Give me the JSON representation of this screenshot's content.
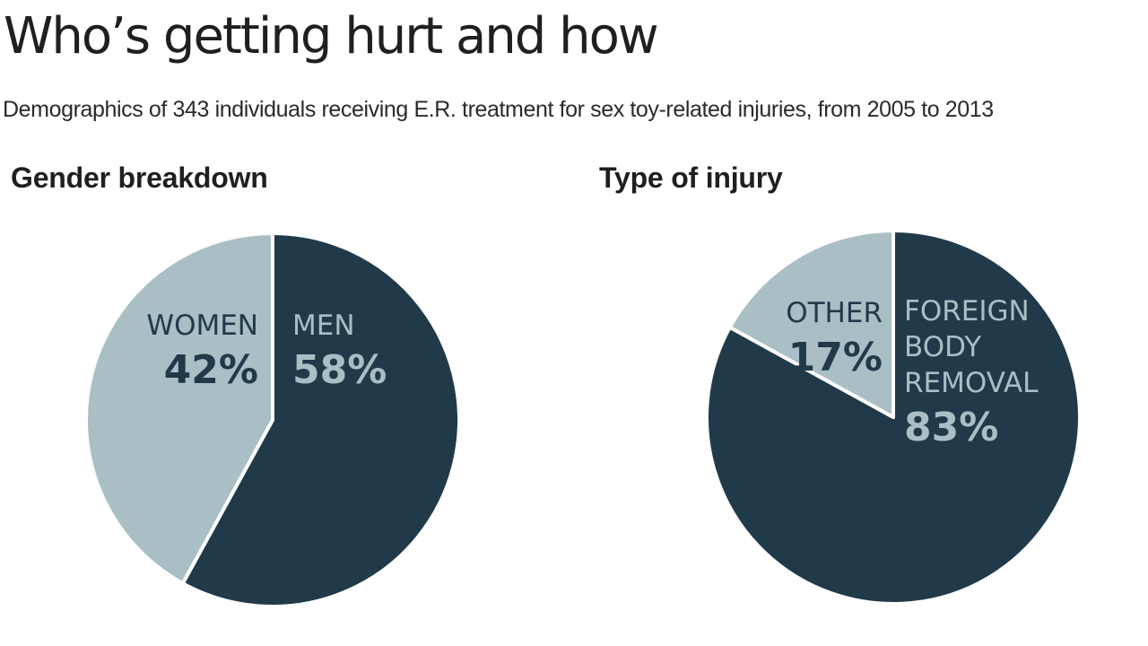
{
  "title": "Who’s getting hurt and how",
  "subtitle": "Demographics of 343 individuals receiving E.R. treatment for sex toy-related injuries, from 2005 to 2013",
  "colors": {
    "dark": "#213a4a",
    "light": "#a9bfc5",
    "stroke": "#ffffff"
  },
  "chart_data": [
    {
      "type": "pie",
      "title": "Gender breakdown",
      "slices": [
        {
          "label": [
            "MEN"
          ],
          "value": 58,
          "value_label": "58%",
          "color": "#213a4a",
          "text_color": "#a9bfc5",
          "align": "start"
        },
        {
          "label": [
            "WOMEN"
          ],
          "value": 42,
          "value_label": "42%",
          "color": "#a9bfc5",
          "text_color": "#213a4a",
          "align": "end"
        }
      ]
    },
    {
      "type": "pie",
      "title": "Type of injury",
      "slices": [
        {
          "label": [
            "FOREIGN",
            "BODY",
            "REMOVAL"
          ],
          "value": 83,
          "value_label": "83%",
          "color": "#213a4a",
          "text_color": "#a9bfc5",
          "align": "start"
        },
        {
          "label": [
            "OTHER"
          ],
          "value": 17,
          "value_label": "17%",
          "color": "#a9bfc5",
          "text_color": "#213a4a",
          "align": "end"
        }
      ]
    }
  ]
}
